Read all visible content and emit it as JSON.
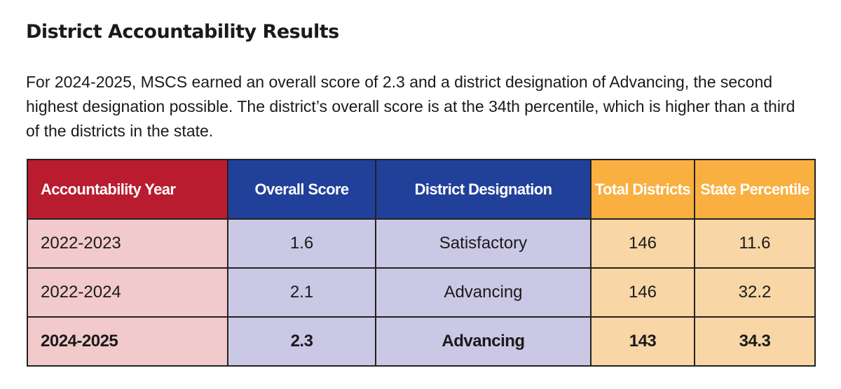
{
  "title": "District Accountability Results",
  "intro": "For 2024-2025, MSCS earned an overall score of 2.3 and a district designation of Advancing, the second highest designation possible. The district’s overall score is at the 34th percentile, which is higher than a third of the districts in the state.",
  "table": {
    "headers": [
      "Accountability Year",
      "Overall Score",
      "District Designation",
      "Total Districts",
      "State Percentile"
    ],
    "rows": [
      [
        "2022-2023",
        "1.6",
        "Satisfactory",
        "146",
        "11.6"
      ],
      [
        "2022-2024",
        "2.1",
        "Advancing",
        "146",
        "32.2"
      ],
      [
        "2024-2025",
        "2.3",
        "Advancing",
        "143",
        "34.3"
      ]
    ]
  },
  "colors": {
    "year_header": "#B91C2E",
    "score_header": "#21409A",
    "stats_header": "#F9B040",
    "year_cells": "#F2CACB",
    "score_cells": "#CBC8E6",
    "stats_cells": "#F8D6A6"
  }
}
